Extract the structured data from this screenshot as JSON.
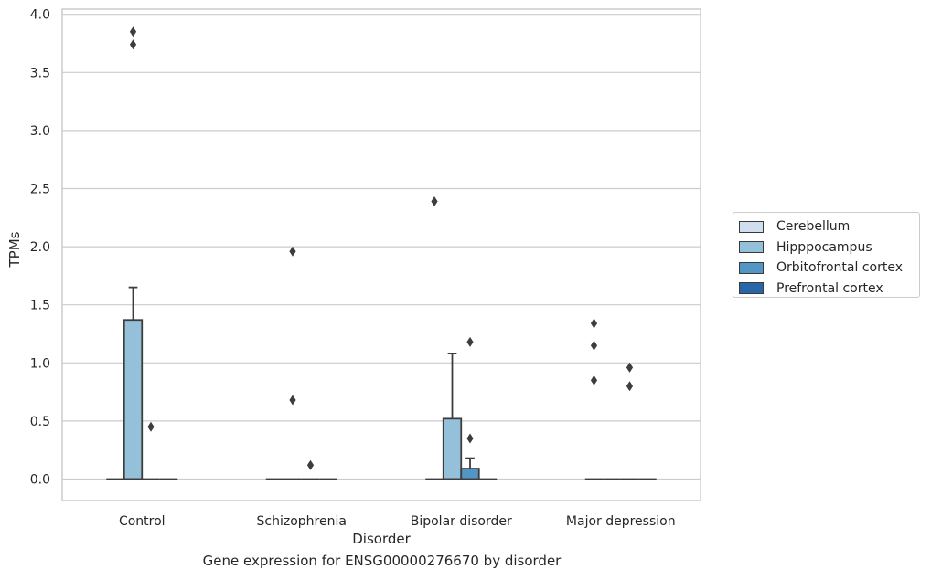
{
  "caption": "Gene expression for ENSG00000276670 by disorder",
  "chart_data": {
    "type": "box",
    "title": "",
    "xlabel": "Disorder",
    "ylabel": "TPMs",
    "ylim": [
      -0.18,
      4.05
    ],
    "yticks": [
      0.0,
      0.5,
      1.0,
      1.5,
      2.0,
      2.5,
      3.0,
      3.5,
      4.0
    ],
    "ytick_labels": [
      "0.0",
      "0.5",
      "1.0",
      "1.5",
      "2.0",
      "2.5",
      "3.0",
      "3.5",
      "4.0"
    ],
    "grid": "horizontal",
    "legend_position": "right, outside plot",
    "categories": [
      "Control",
      "Schizophrenia",
      "Bipolar disorder",
      "Major depression"
    ],
    "series": [
      {
        "name": "Cerebellum",
        "color": "#cfdff0",
        "boxes": [
          {
            "q1": 0,
            "median": 0,
            "q3": 0,
            "whisker_low": 0,
            "whisker_high": 0,
            "outliers": []
          },
          {
            "q1": 0,
            "median": 0,
            "q3": 0,
            "whisker_low": 0,
            "whisker_high": 0,
            "outliers": []
          },
          {
            "q1": 0,
            "median": 0,
            "q3": 0,
            "whisker_low": 0,
            "whisker_high": 0,
            "outliers": [
              2.39
            ]
          },
          {
            "q1": 0,
            "median": 0,
            "q3": 0,
            "whisker_low": 0,
            "whisker_high": 0,
            "outliers": [
              1.34,
              1.15,
              0.85
            ]
          }
        ]
      },
      {
        "name": "Hipppocampus",
        "color": "#94c0da",
        "boxes": [
          {
            "q1": 0,
            "median": 0,
            "q3": 1.37,
            "whisker_low": 0,
            "whisker_high": 1.65,
            "outliers": [
              3.85,
              3.74
            ]
          },
          {
            "q1": 0,
            "median": 0,
            "q3": 0,
            "whisker_low": 0,
            "whisker_high": 0,
            "outliers": [
              1.96,
              0.68
            ]
          },
          {
            "q1": 0,
            "median": 0,
            "q3": 0.52,
            "whisker_low": 0,
            "whisker_high": 1.08,
            "outliers": []
          },
          {
            "q1": 0,
            "median": 0,
            "q3": 0,
            "whisker_low": 0,
            "whisker_high": 0,
            "outliers": []
          }
        ]
      },
      {
        "name": "Orbitofrontal cortex",
        "color": "#5296c6",
        "boxes": [
          {
            "q1": 0,
            "median": 0,
            "q3": 0,
            "whisker_low": 0,
            "whisker_high": 0,
            "outliers": [
              0.45
            ]
          },
          {
            "q1": 0,
            "median": 0,
            "q3": 0,
            "whisker_low": 0,
            "whisker_high": 0,
            "outliers": [
              0.12
            ]
          },
          {
            "q1": 0,
            "median": 0,
            "q3": 0.09,
            "whisker_low": 0,
            "whisker_high": 0.18,
            "outliers": [
              1.18,
              0.35
            ]
          },
          {
            "q1": 0,
            "median": 0,
            "q3": 0,
            "whisker_low": 0,
            "whisker_high": 0,
            "outliers": [
              0.96,
              0.8
            ]
          }
        ]
      },
      {
        "name": "Prefrontal cortex",
        "color": "#2767a8",
        "boxes": [
          {
            "q1": 0,
            "median": 0,
            "q3": 0,
            "whisker_low": 0,
            "whisker_high": 0,
            "outliers": []
          },
          {
            "q1": 0,
            "median": 0,
            "q3": 0,
            "whisker_low": 0,
            "whisker_high": 0,
            "outliers": []
          },
          {
            "q1": 0,
            "median": 0,
            "q3": 0,
            "whisker_low": 0,
            "whisker_high": 0,
            "outliers": []
          },
          {
            "q1": 0,
            "median": 0,
            "q3": 0,
            "whisker_low": 0,
            "whisker_high": 0,
            "outliers": []
          }
        ]
      }
    ]
  }
}
